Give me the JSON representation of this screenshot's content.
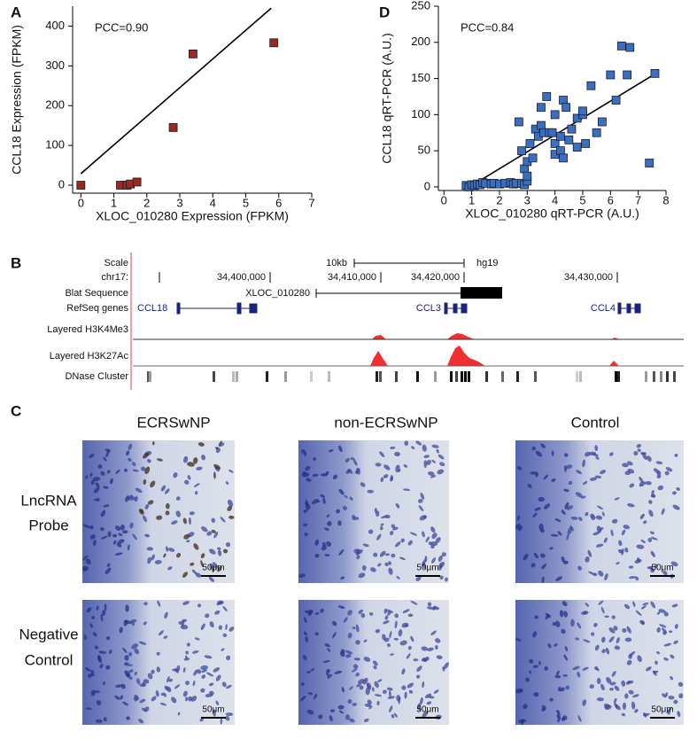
{
  "chart_data": [
    {
      "type": "scatter",
      "panel_label": "A",
      "x_label": "XLOC_010280 Expression (FPKM)",
      "y_label": "CCL18 Expression (FPKM)",
      "annotation": "PCC=0.90",
      "xlim": [
        -0.25,
        7
      ],
      "ylim": [
        -20,
        450
      ],
      "xticks": [
        0,
        1,
        2,
        3,
        4,
        5,
        6,
        7
      ],
      "yticks": [
        0,
        100,
        200,
        300,
        400
      ],
      "color": "#9b2a1e",
      "marker": "square",
      "x": [
        0,
        1.2,
        1.4,
        1.5,
        1.7,
        2.8,
        3.4,
        5.85
      ],
      "y": [
        0,
        0,
        0,
        3,
        8,
        145,
        330,
        358
      ],
      "trendline": {
        "x": [
          0,
          5.77
        ],
        "y": [
          29,
          445
        ]
      }
    },
    {
      "type": "scatter",
      "panel_label": "D",
      "x_label": "XLOC_010280 qRT-PCR (A.U.)",
      "y_label": "CCL18 qRT-PCR (A.U.)",
      "annotation": "PCC=0.84",
      "xlim": [
        -0.2,
        8
      ],
      "ylim": [
        -5,
        250
      ],
      "xticks": [
        0,
        1,
        2,
        3,
        4,
        5,
        6,
        7,
        8
      ],
      "yticks": [
        0,
        50,
        100,
        150,
        200,
        250
      ],
      "color": "#3a6fc0",
      "marker": "square",
      "x": [
        0.8,
        0.9,
        1,
        1.1,
        1.2,
        1.3,
        1.4,
        1.5,
        1.7,
        1.8,
        2,
        2.2,
        2.4,
        2.5,
        2.6,
        2.8,
        2.9,
        3,
        2.7,
        2.8,
        2.9,
        3,
        3,
        3.1,
        3.2,
        3.3,
        3.4,
        3.5,
        3.5,
        3.6,
        3.7,
        3.8,
        3.9,
        4,
        4,
        4,
        4.2,
        4.2,
        4.3,
        4.3,
        4.4,
        4.5,
        4.6,
        4.8,
        4.8,
        5,
        5,
        5.1,
        5.3,
        5.5,
        5.7,
        6,
        6.2,
        6.4,
        6.6,
        6.7,
        7.4,
        7.6
      ],
      "y": [
        2,
        0,
        3,
        2,
        4,
        3,
        6,
        5,
        4,
        5,
        4,
        5,
        6,
        4,
        5,
        5,
        3,
        8,
        90,
        50,
        25,
        15,
        35,
        60,
        40,
        80,
        70,
        110,
        85,
        75,
        125,
        75,
        75,
        100,
        60,
        45,
        50,
        70,
        120,
        40,
        110,
        65,
        80,
        95,
        55,
        100,
        105,
        60,
        140,
        75,
        90,
        155,
        120,
        195,
        155,
        193,
        33,
        157
      ],
      "trendline": {
        "x": [
          0.8,
          7.55
        ],
        "y": [
          -3,
          155
        ]
      }
    }
  ],
  "genome_browser": {
    "panel_label": "B",
    "track_labels": [
      "Scale",
      "chr17:",
      "Blat Sequence",
      "RefSeq genes",
      "Layered H3K4Me3",
      "Layered H3K27Ac",
      "DNase Cluster"
    ],
    "scale_length": "10kb",
    "assembly": "hg19",
    "coordinates": [
      "34,400,000",
      "34,410,000",
      "34,420,000",
      "34,430,000"
    ],
    "blat_sequence": "XLOC_010280",
    "genes": [
      "CCL18",
      "CCL3",
      "CCL4"
    ]
  },
  "histology": {
    "panel_label": "C",
    "columns": [
      "ECRSwNP",
      "non-ECRSwNP",
      "Control"
    ],
    "rows": [
      [
        "LncRNA",
        "Probe"
      ],
      [
        "Negative",
        "Control"
      ]
    ],
    "scale_bar": "50μm"
  }
}
